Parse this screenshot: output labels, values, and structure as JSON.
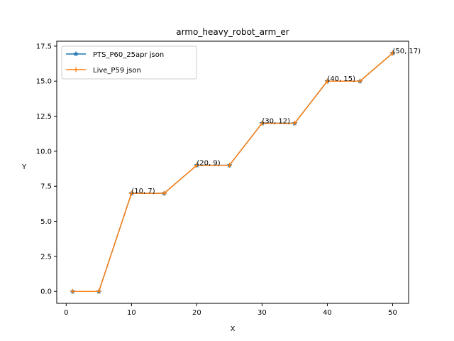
{
  "chart_data": {
    "type": "line",
    "title": "armo_heavy_robot_arm_er",
    "xlabel": "X",
    "ylabel": "Y",
    "xlim": [
      -1.45,
      52.45
    ],
    "ylim": [
      -0.85,
      17.85
    ],
    "xticks": [
      0,
      10,
      20,
      30,
      40,
      50
    ],
    "yticks": [
      0.0,
      2.5,
      5.0,
      7.5,
      10.0,
      12.5,
      15.0,
      17.5
    ],
    "xtick_labels": [
      "0",
      "10",
      "20",
      "30",
      "40",
      "50"
    ],
    "ytick_labels": [
      "0.0",
      "2.5",
      "5.0",
      "7.5",
      "10.0",
      "12.5",
      "15.0",
      "17.5"
    ],
    "grid": false,
    "legend_position": "upper-left",
    "x": [
      1,
      5,
      10,
      15,
      20,
      25,
      30,
      35,
      40,
      45,
      50
    ],
    "series": [
      {
        "name": "PTS_P60_25apr json",
        "values": [
          0,
          0,
          7,
          7,
          9,
          9,
          12,
          12,
          15,
          15,
          17
        ],
        "color": "#1f77b4",
        "marker": "star"
      },
      {
        "name": "Live_P59 json",
        "values": [
          0,
          0,
          7,
          7,
          9,
          9,
          12,
          12,
          15,
          15,
          17
        ],
        "color": "#ff7f0e",
        "marker": "plus"
      }
    ],
    "annotations": [
      {
        "text": "(10, 7)",
        "x": 10,
        "y": 7
      },
      {
        "text": "(20, 9)",
        "x": 20,
        "y": 9
      },
      {
        "text": "(30, 12)",
        "x": 30,
        "y": 12
      },
      {
        "text": "(40, 15)",
        "x": 40,
        "y": 15
      },
      {
        "text": "(50, 17)",
        "x": 50,
        "y": 17
      }
    ]
  }
}
